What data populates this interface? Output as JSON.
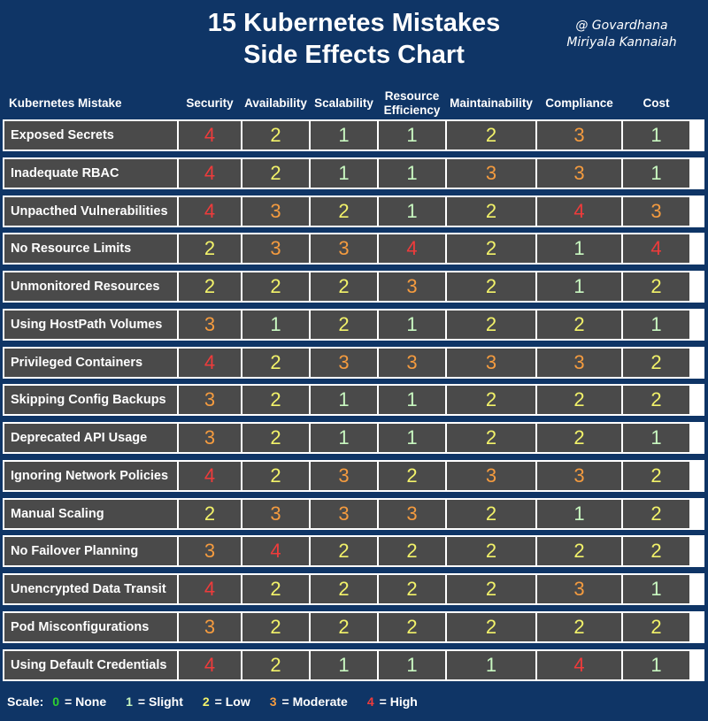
{
  "title_line1": "15 Kubernetes Mistakes",
  "title_line2": "Side Effects Chart",
  "author_line1": "@ Govardhana",
  "author_line2": "Miriyala Kannaiah",
  "colors": {
    "background": "#0f3566",
    "cell": "#4a4a4a",
    "level_0": "#2fd12f",
    "level_1": "#c8f7c0",
    "level_2": "#f2f26a",
    "level_3": "#f49b3f",
    "level_4": "#ee3b3b"
  },
  "scale": {
    "label": "Scale:",
    "items": [
      {
        "value": "0",
        "text": "= None"
      },
      {
        "value": "1",
        "text": "= Slight"
      },
      {
        "value": "2",
        "text": "= Low"
      },
      {
        "value": "3",
        "text": "= Moderate"
      },
      {
        "value": "4",
        "text": "= High"
      }
    ]
  },
  "chart_data": {
    "type": "table",
    "row_header": "Kubernetes Mistake",
    "columns": [
      "Security",
      "Availability",
      "Scalability",
      "Resource Efficiency",
      "Maintainability",
      "Compliance",
      "Cost"
    ],
    "rows": [
      {
        "name": "Exposed Secrets",
        "values": [
          4,
          2,
          1,
          1,
          2,
          3,
          1
        ]
      },
      {
        "name": "Inadequate RBAC",
        "values": [
          4,
          2,
          1,
          1,
          3,
          3,
          1
        ]
      },
      {
        "name": "Unpacthed Vulnerabilities",
        "values": [
          4,
          3,
          2,
          1,
          2,
          4,
          3
        ]
      },
      {
        "name": "No Resource Limits",
        "values": [
          2,
          3,
          3,
          4,
          2,
          1,
          4
        ]
      },
      {
        "name": "Unmonitored Resources",
        "values": [
          2,
          2,
          2,
          3,
          2,
          1,
          2
        ]
      },
      {
        "name": "Using HostPath Volumes",
        "values": [
          3,
          1,
          2,
          1,
          2,
          2,
          1
        ]
      },
      {
        "name": "Privileged Containers",
        "values": [
          4,
          2,
          3,
          3,
          3,
          3,
          2
        ]
      },
      {
        "name": "Skipping Config Backups",
        "values": [
          3,
          2,
          1,
          1,
          2,
          2,
          2
        ]
      },
      {
        "name": "Deprecated API Usage",
        "values": [
          3,
          2,
          1,
          1,
          2,
          2,
          1
        ]
      },
      {
        "name": "Ignoring Network Policies",
        "values": [
          4,
          2,
          3,
          2,
          3,
          3,
          2
        ]
      },
      {
        "name": "Manual Scaling",
        "values": [
          2,
          3,
          3,
          3,
          2,
          1,
          2
        ]
      },
      {
        "name": "No Failover Planning",
        "values": [
          3,
          4,
          2,
          2,
          2,
          2,
          2
        ]
      },
      {
        "name": "Unencrypted Data Transit",
        "values": [
          4,
          2,
          2,
          2,
          2,
          3,
          1
        ]
      },
      {
        "name": "Pod Misconfigurations",
        "values": [
          3,
          2,
          2,
          2,
          2,
          2,
          2
        ]
      },
      {
        "name": "Using Default Credentials",
        "values": [
          4,
          2,
          1,
          1,
          1,
          4,
          1
        ]
      }
    ]
  }
}
